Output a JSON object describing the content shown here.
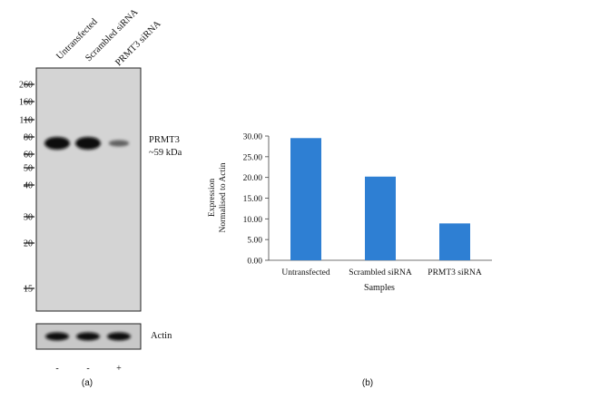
{
  "blot": {
    "lanes": [
      "Untransfected",
      "Scrambled siRNA",
      "PRMT3 siRNA"
    ],
    "markers": [
      "260",
      "160",
      "110",
      "80",
      "60",
      "50",
      "40",
      "30",
      "20",
      "15"
    ],
    "band_label": "PRMT3",
    "band_size": "~59 kDa",
    "loading_control": "Actin",
    "treatment_marks": [
      "-",
      "-",
      "+"
    ],
    "panel_label": "(a)",
    "band_intensity": [
      1.0,
      1.0,
      0.3
    ],
    "actin_intensity": [
      1.0,
      1.0,
      1.0
    ]
  },
  "chart_data": {
    "type": "bar",
    "categories": [
      "Untransfected",
      "Scrambled siRNA",
      "PRMT3 siRNA"
    ],
    "values": [
      29.5,
      20.2,
      8.9
    ],
    "xlabel": "Samples",
    "ylabel_lines": [
      "Expression",
      "Normalised to Actin"
    ],
    "ylim": [
      0,
      30
    ],
    "yticks": [
      "0.00",
      "5.00",
      "10.00",
      "15.00",
      "20.00",
      "25.00",
      "30.00"
    ],
    "bar_color": "#2e7fd3",
    "grid": false,
    "panel_label": "(b)"
  }
}
